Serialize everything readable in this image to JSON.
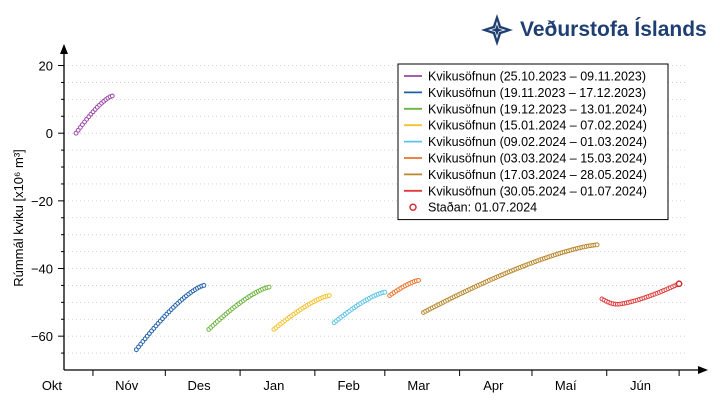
{
  "brand": {
    "name": "Veðurstofa Íslands",
    "logo_icon": "compass-star-icon",
    "color": "#1f3f73"
  },
  "chart_data": {
    "type": "scatter",
    "ylabel": "Rúmmál kviku [x10⁶ m³]",
    "ylim": [
      -70,
      24
    ],
    "yticks": [
      20,
      0,
      -20,
      -40,
      -60
    ],
    "ytick_labels": [
      "20",
      "0",
      "−20",
      "−40",
      "−60"
    ],
    "xlim": [
      "2023-10-20",
      "2024-07-08"
    ],
    "months": [
      {
        "label": "Okt",
        "date": "2023-10-15"
      },
      {
        "label": "Nóv",
        "date": "2023-11-15"
      },
      {
        "label": "Des",
        "date": "2023-12-15"
      },
      {
        "label": "Jan",
        "date": "2024-01-15"
      },
      {
        "label": "Feb",
        "date": "2024-02-15"
      },
      {
        "label": "Mar",
        "date": "2024-03-15"
      },
      {
        "label": "Apr",
        "date": "2024-04-15"
      },
      {
        "label": "Maí",
        "date": "2024-05-15"
      },
      {
        "label": "Jún",
        "date": "2024-06-15"
      }
    ],
    "month_boundaries": [
      "2023-11-01",
      "2023-12-01",
      "2024-01-01",
      "2024-02-01",
      "2024-03-01",
      "2024-04-01",
      "2024-05-01",
      "2024-06-01",
      "2024-07-01"
    ],
    "grid": "horizontal-dotted",
    "legend_position": "top-right",
    "series": [
      {
        "name": "Kvikusöfnun (25.10.2023 – 09.11.2023)",
        "color": "#9b45a8",
        "start": "2023-10-25",
        "end": "2023-11-09",
        "y_start": 0,
        "y_end": 11
      },
      {
        "name": "Kvikusöfnun (19.11.2023 – 17.12.2023)",
        "color": "#1f5fa8",
        "start": "2023-11-19",
        "end": "2023-12-17",
        "y_start": -64,
        "y_end": -45
      },
      {
        "name": "Kvikusöfnun (19.12.2023 – 13.01.2024)",
        "color": "#6db33f",
        "start": "2023-12-19",
        "end": "2024-01-13",
        "y_start": -58,
        "y_end": -45.5
      },
      {
        "name": "Kvikusöfnun (15.01.2024 – 07.02.2024)",
        "color": "#f2c12e",
        "start": "2024-01-15",
        "end": "2024-02-07",
        "y_start": -58,
        "y_end": -48
      },
      {
        "name": "Kvikusöfnun (09.02.2024 – 01.03.2024)",
        "color": "#5bc3e8",
        "start": "2024-02-09",
        "end": "2024-03-01",
        "y_start": -56,
        "y_end": -47
      },
      {
        "name": "Kvikusöfnun (03.03.2024 – 15.03.2024)",
        "color": "#e8732a",
        "start": "2024-03-03",
        "end": "2024-03-15",
        "y_start": -48,
        "y_end": -43.5
      },
      {
        "name": "Kvikusöfnun (17.03.2024 – 28.05.2024)",
        "color": "#b8862b",
        "start": "2024-03-17",
        "end": "2024-05-28",
        "y_start": -53,
        "y_end": -33
      },
      {
        "name": "Kvikusöfnun (30.05.2024 – 01.07.2024)",
        "color": "#e03a3a",
        "start": "2024-05-30",
        "end": "2024-07-01",
        "y_start": -49,
        "y_end": -44.5
      }
    ],
    "current_state": {
      "name": "Staðan: 01.07.2024",
      "date": "2024-07-01",
      "y": -44.5,
      "color": "#d62728"
    }
  }
}
